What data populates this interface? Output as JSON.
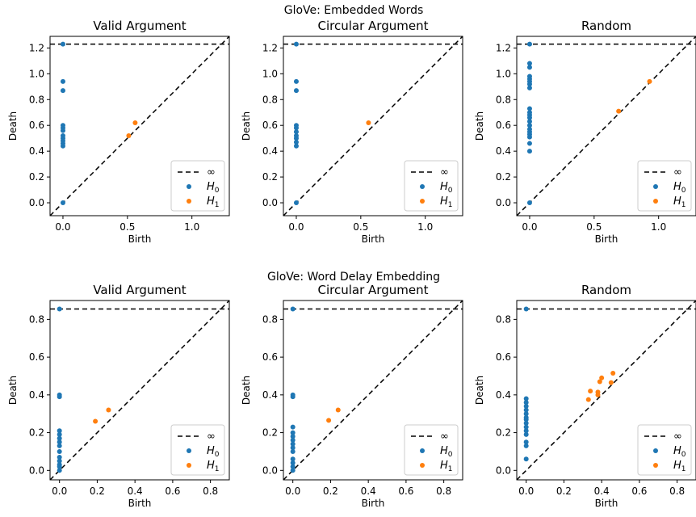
{
  "row_titles": [
    "GloVe: Embedded Words",
    "GloVe: Word Delay Embedding"
  ],
  "colors": {
    "H0": "#1f77b4",
    "H1": "#ff7f0e",
    "infinity_line": "#000000"
  },
  "legend_labels": {
    "infinity": "∞",
    "H0": "H",
    "H0_sub": "0",
    "H1": "H",
    "H1_sub": "1"
  },
  "chart_data": [
    {
      "type": "scatter",
      "row": 0,
      "title": "Valid Argument",
      "xlabel": "Birth",
      "ylabel": "Death",
      "xlim": [
        -0.1,
        1.29
      ],
      "ylim": [
        -0.1,
        1.29
      ],
      "xticks": [
        0.0,
        0.5,
        1.0
      ],
      "xtick_labels": [
        "0.0",
        "0.5",
        "1.0"
      ],
      "yticks": [
        0.0,
        0.2,
        0.4,
        0.6,
        0.8,
        1.0,
        1.2
      ],
      "ytick_labels": [
        "0.0",
        "0.2",
        "0.4",
        "0.6",
        "0.8",
        "1.0",
        "1.2"
      ],
      "infinity": 1.23,
      "legend_position": "lower right",
      "series": [
        {
          "name": "H0",
          "points": [
            [
              0,
              1.23
            ],
            [
              0,
              0.94
            ],
            [
              0,
              0.87
            ],
            [
              0,
              0.6
            ],
            [
              0,
              0.58
            ],
            [
              0,
              0.56
            ],
            [
              0,
              0.52
            ],
            [
              0,
              0.5
            ],
            [
              0,
              0.48
            ],
            [
              0,
              0.46
            ],
            [
              0,
              0.44
            ],
            [
              0,
              0.0
            ]
          ]
        },
        {
          "name": "H1",
          "points": [
            [
              0.51,
              0.52
            ],
            [
              0.56,
              0.62
            ]
          ]
        }
      ]
    },
    {
      "type": "scatter",
      "row": 0,
      "title": "Circular Argument",
      "xlabel": "Birth",
      "ylabel": "Death",
      "xlim": [
        -0.1,
        1.29
      ],
      "ylim": [
        -0.1,
        1.29
      ],
      "xticks": [
        0.0,
        0.5,
        1.0
      ],
      "xtick_labels": [
        "0.0",
        "0.5",
        "1.0"
      ],
      "yticks": [
        0.0,
        0.2,
        0.4,
        0.6,
        0.8,
        1.0,
        1.2
      ],
      "ytick_labels": [
        "0.0",
        "0.2",
        "0.4",
        "0.6",
        "0.8",
        "1.0",
        "1.2"
      ],
      "infinity": 1.23,
      "legend_position": "lower right",
      "series": [
        {
          "name": "H0",
          "points": [
            [
              0,
              1.23
            ],
            [
              0,
              0.94
            ],
            [
              0,
              0.87
            ],
            [
              0,
              0.6
            ],
            [
              0,
              0.58
            ],
            [
              0,
              0.55
            ],
            [
              0,
              0.52
            ],
            [
              0,
              0.5
            ],
            [
              0,
              0.47
            ],
            [
              0,
              0.44
            ],
            [
              0,
              0.0
            ]
          ]
        },
        {
          "name": "H1",
          "points": [
            [
              0.56,
              0.62
            ]
          ]
        }
      ]
    },
    {
      "type": "scatter",
      "row": 0,
      "title": "Random",
      "xlabel": "Birth",
      "ylabel": "Death",
      "xlim": [
        -0.1,
        1.29
      ],
      "ylim": [
        -0.1,
        1.29
      ],
      "xticks": [
        0.0,
        0.5,
        1.0
      ],
      "xtick_labels": [
        "0.0",
        "0.5",
        "1.0"
      ],
      "yticks": [
        0.0,
        0.2,
        0.4,
        0.6,
        0.8,
        1.0,
        1.2
      ],
      "ytick_labels": [
        "0.0",
        "0.2",
        "0.4",
        "0.6",
        "0.8",
        "1.0",
        "1.2"
      ],
      "infinity": 1.23,
      "legend_position": "lower right",
      "series": [
        {
          "name": "H0",
          "points": [
            [
              0,
              1.23
            ],
            [
              0,
              1.08
            ],
            [
              0,
              1.05
            ],
            [
              0,
              0.98
            ],
            [
              0,
              0.96
            ],
            [
              0,
              0.94
            ],
            [
              0,
              0.92
            ],
            [
              0,
              0.89
            ],
            [
              0,
              0.73
            ],
            [
              0,
              0.7
            ],
            [
              0,
              0.68
            ],
            [
              0,
              0.66
            ],
            [
              0,
              0.63
            ],
            [
              0,
              0.6
            ],
            [
              0,
              0.57
            ],
            [
              0,
              0.55
            ],
            [
              0,
              0.53
            ],
            [
              0,
              0.51
            ],
            [
              0,
              0.46
            ],
            [
              0,
              0.4
            ],
            [
              0,
              0.0
            ]
          ]
        },
        {
          "name": "H1",
          "points": [
            [
              0.69,
              0.71
            ],
            [
              0.93,
              0.94
            ]
          ]
        }
      ]
    },
    {
      "type": "scatter",
      "row": 1,
      "title": "Valid Argument",
      "xlabel": "Birth",
      "ylabel": "Death",
      "xlim": [
        -0.05,
        0.9
      ],
      "ylim": [
        -0.05,
        0.9
      ],
      "xticks": [
        0.0,
        0.2,
        0.4,
        0.6,
        0.8
      ],
      "xtick_labels": [
        "0.0",
        "0.2",
        "0.4",
        "0.6",
        "0.8"
      ],
      "yticks": [
        0.0,
        0.2,
        0.4,
        0.6,
        0.8
      ],
      "ytick_labels": [
        "0.0",
        "0.2",
        "0.4",
        "0.6",
        "0.8"
      ],
      "infinity": 0.855,
      "legend_position": "lower right",
      "series": [
        {
          "name": "H0",
          "points": [
            [
              0,
              0.855
            ],
            [
              0,
              0.4
            ],
            [
              0,
              0.39
            ],
            [
              0,
              0.21
            ],
            [
              0,
              0.19
            ],
            [
              0,
              0.17
            ],
            [
              0,
              0.15
            ],
            [
              0,
              0.13
            ],
            [
              0,
              0.1
            ],
            [
              0,
              0.07
            ],
            [
              0,
              0.05
            ],
            [
              0,
              0.03
            ],
            [
              0,
              0.02
            ],
            [
              0,
              0.0
            ]
          ]
        },
        {
          "name": "H1",
          "points": [
            [
              0.19,
              0.26
            ],
            [
              0.26,
              0.32
            ]
          ]
        }
      ]
    },
    {
      "type": "scatter",
      "row": 1,
      "title": "Circular Argument",
      "xlabel": "Birth",
      "ylabel": "Death",
      "xlim": [
        -0.05,
        0.9
      ],
      "ylim": [
        -0.05,
        0.9
      ],
      "xticks": [
        0.0,
        0.2,
        0.4,
        0.6,
        0.8
      ],
      "xtick_labels": [
        "0.0",
        "0.2",
        "0.4",
        "0.6",
        "0.8"
      ],
      "yticks": [
        0.0,
        0.2,
        0.4,
        0.6,
        0.8
      ],
      "ytick_labels": [
        "0.0",
        "0.2",
        "0.4",
        "0.6",
        "0.8"
      ],
      "infinity": 0.855,
      "legend_position": "lower right",
      "series": [
        {
          "name": "H0",
          "points": [
            [
              0,
              0.855
            ],
            [
              0,
              0.4
            ],
            [
              0,
              0.39
            ],
            [
              0,
              0.23
            ],
            [
              0,
              0.2
            ],
            [
              0,
              0.18
            ],
            [
              0,
              0.16
            ],
            [
              0,
              0.14
            ],
            [
              0,
              0.12
            ],
            [
              0,
              0.1
            ],
            [
              0,
              0.06
            ],
            [
              0,
              0.04
            ],
            [
              0,
              0.02
            ],
            [
              0,
              0.0
            ]
          ]
        },
        {
          "name": "H1",
          "points": [
            [
              0.19,
              0.265
            ],
            [
              0.24,
              0.32
            ]
          ]
        }
      ]
    },
    {
      "type": "scatter",
      "row": 1,
      "title": "Random",
      "xlabel": "Birth",
      "ylabel": "Death",
      "xlim": [
        -0.05,
        0.9
      ],
      "ylim": [
        -0.05,
        0.9
      ],
      "xticks": [
        0.0,
        0.2,
        0.4,
        0.6,
        0.8
      ],
      "xtick_labels": [
        "0.0",
        "0.2",
        "0.4",
        "0.6",
        "0.8"
      ],
      "yticks": [
        0.0,
        0.2,
        0.4,
        0.6,
        0.8
      ],
      "ytick_labels": [
        "0.0",
        "0.2",
        "0.4",
        "0.6",
        "0.8"
      ],
      "infinity": 0.855,
      "legend_position": "lower right",
      "series": [
        {
          "name": "H0",
          "points": [
            [
              0,
              0.855
            ],
            [
              0,
              0.38
            ],
            [
              0,
              0.36
            ],
            [
              0,
              0.34
            ],
            [
              0,
              0.32
            ],
            [
              0,
              0.3
            ],
            [
              0,
              0.28
            ],
            [
              0,
              0.27
            ],
            [
              0,
              0.25
            ],
            [
              0,
              0.23
            ],
            [
              0,
              0.21
            ],
            [
              0,
              0.19
            ],
            [
              0,
              0.15
            ],
            [
              0,
              0.13
            ],
            [
              0,
              0.06
            ]
          ]
        },
        {
          "name": "H1",
          "points": [
            [
              0.33,
              0.375
            ],
            [
              0.34,
              0.42
            ],
            [
              0.38,
              0.4
            ],
            [
              0.38,
              0.415
            ],
            [
              0.39,
              0.47
            ],
            [
              0.4,
              0.49
            ],
            [
              0.45,
              0.465
            ],
            [
              0.46,
              0.515
            ]
          ]
        }
      ]
    }
  ]
}
